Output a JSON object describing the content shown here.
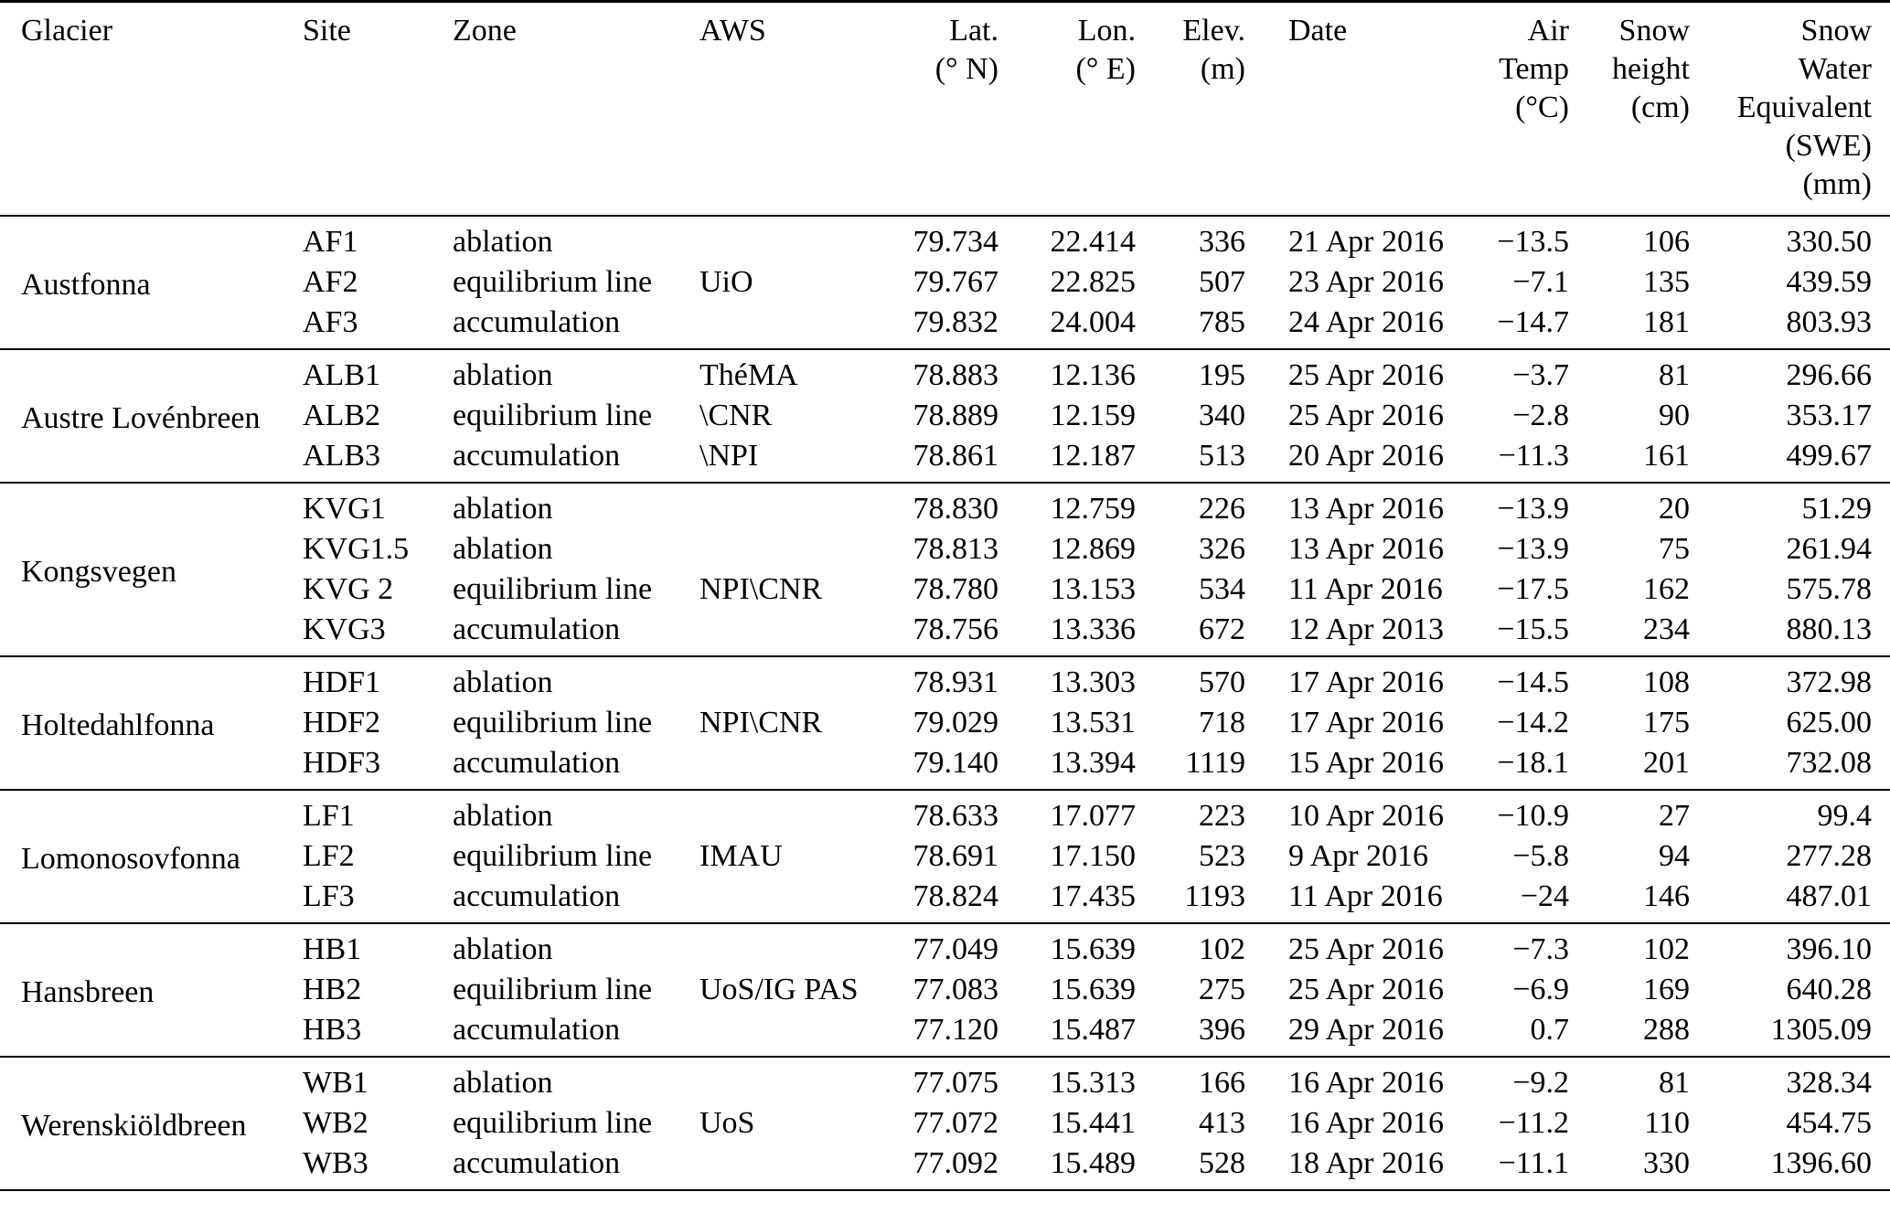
{
  "table": {
    "columns": [
      {
        "id": "glacier",
        "lines": [
          "Glacier"
        ]
      },
      {
        "id": "site",
        "lines": [
          "Site"
        ]
      },
      {
        "id": "zone",
        "lines": [
          "Zone"
        ]
      },
      {
        "id": "aws",
        "lines": [
          "AWS"
        ]
      },
      {
        "id": "lat",
        "lines": [
          "Lat.",
          "(° N)"
        ]
      },
      {
        "id": "lon",
        "lines": [
          "Lon.",
          "(° E)"
        ]
      },
      {
        "id": "elev",
        "lines": [
          "Elev.",
          "(m)"
        ]
      },
      {
        "id": "date",
        "lines": [
          "Date"
        ]
      },
      {
        "id": "temp",
        "lines": [
          "Air",
          "Temp",
          "(°C)"
        ]
      },
      {
        "id": "snow",
        "lines": [
          "Snow",
          "height",
          "(cm)"
        ]
      },
      {
        "id": "swe",
        "lines": [
          "Snow",
          "Water",
          "Equivalent",
          "(SWE)",
          "(mm)"
        ]
      }
    ],
    "groups": [
      {
        "glacier": "Austfonna",
        "rows": [
          {
            "site": "AF1",
            "zone": "ablation",
            "aws": "",
            "lat": "79.734",
            "lon": "22.414",
            "elev": "336",
            "date": "21 Apr 2016",
            "temp": "−13.5",
            "snow": "106",
            "swe": "330.50"
          },
          {
            "site": "AF2",
            "zone": "equilibrium line",
            "aws": "UiO",
            "lat": "79.767",
            "lon": "22.825",
            "elev": "507",
            "date": "23 Apr 2016",
            "temp": "−7.1",
            "snow": "135",
            "swe": "439.59"
          },
          {
            "site": "AF3",
            "zone": "accumulation",
            "aws": "",
            "lat": "79.832",
            "lon": "24.004",
            "elev": "785",
            "date": "24 Apr 2016",
            "temp": "−14.7",
            "snow": "181",
            "swe": "803.93"
          }
        ]
      },
      {
        "glacier": "Austre Lovénbreen",
        "rows": [
          {
            "site": "ALB1",
            "zone": "ablation",
            "aws": "ThéMA",
            "lat": "78.883",
            "lon": "12.136",
            "elev": "195",
            "date": "25 Apr 2016",
            "temp": "−3.7",
            "snow": "81",
            "swe": "296.66"
          },
          {
            "site": "ALB2",
            "zone": "equilibrium line",
            "aws": "\\CNR",
            "lat": "78.889",
            "lon": "12.159",
            "elev": "340",
            "date": "25 Apr 2016",
            "temp": "−2.8",
            "snow": "90",
            "swe": "353.17"
          },
          {
            "site": "ALB3",
            "zone": "accumulation",
            "aws": "\\NPI",
            "lat": "78.861",
            "lon": "12.187",
            "elev": "513",
            "date": "20 Apr 2016",
            "temp": "−11.3",
            "snow": "161",
            "swe": "499.67"
          }
        ]
      },
      {
        "glacier": "Kongsvegen",
        "rows": [
          {
            "site": "KVG1",
            "zone": "ablation",
            "aws": "",
            "lat": "78.830",
            "lon": "12.759",
            "elev": "226",
            "date": "13 Apr 2016",
            "temp": "−13.9",
            "snow": "20",
            "swe": "51.29"
          },
          {
            "site": "KVG1.5",
            "zone": "ablation",
            "aws": "",
            "lat": "78.813",
            "lon": "12.869",
            "elev": "326",
            "date": "13 Apr 2016",
            "temp": "−13.9",
            "snow": "75",
            "swe": "261.94"
          },
          {
            "site": "KVG 2",
            "zone": "equilibrium line",
            "aws": "NPI\\CNR",
            "lat": "78.780",
            "lon": "13.153",
            "elev": "534",
            "date": "11 Apr 2016",
            "temp": "−17.5",
            "snow": "162",
            "swe": "575.78"
          },
          {
            "site": "KVG3",
            "zone": "accumulation",
            "aws": "",
            "lat": "78.756",
            "lon": "13.336",
            "elev": "672",
            "date": "12 Apr 2013",
            "temp": "−15.5",
            "snow": "234",
            "swe": "880.13"
          }
        ]
      },
      {
        "glacier": "Holtedahlfonna",
        "rows": [
          {
            "site": "HDF1",
            "zone": "ablation",
            "aws": "",
            "lat": "78.931",
            "lon": "13.303",
            "elev": "570",
            "date": "17 Apr 2016",
            "temp": "−14.5",
            "snow": "108",
            "swe": "372.98"
          },
          {
            "site": "HDF2",
            "zone": "equilibrium line",
            "aws": "NPI\\CNR",
            "lat": "79.029",
            "lon": "13.531",
            "elev": "718",
            "date": "17 Apr 2016",
            "temp": "−14.2",
            "snow": "175",
            "swe": "625.00"
          },
          {
            "site": "HDF3",
            "zone": "accumulation",
            "aws": "",
            "lat": "79.140",
            "lon": "13.394",
            "elev": "1119",
            "date": "15 Apr 2016",
            "temp": "−18.1",
            "snow": "201",
            "swe": "732.08"
          }
        ]
      },
      {
        "glacier": "Lomonosovfonna",
        "rows": [
          {
            "site": "LF1",
            "zone": "ablation",
            "aws": "",
            "lat": "78.633",
            "lon": "17.077",
            "elev": "223",
            "date": "10 Apr 2016",
            "temp": "−10.9",
            "snow": "27",
            "swe": "99.4"
          },
          {
            "site": "LF2",
            "zone": "equilibrium line",
            "aws": "IMAU",
            "lat": "78.691",
            "lon": "17.150",
            "elev": "523",
            "date": "9 Apr 2016",
            "temp": "−5.8",
            "snow": "94",
            "swe": "277.28"
          },
          {
            "site": "LF3",
            "zone": "accumulation",
            "aws": "",
            "lat": "78.824",
            "lon": "17.435",
            "elev": "1193",
            "date": "11 Apr 2016",
            "temp": "−24",
            "snow": "146",
            "swe": "487.01"
          }
        ]
      },
      {
        "glacier": "Hansbreen",
        "rows": [
          {
            "site": "HB1",
            "zone": "ablation",
            "aws": "",
            "lat": "77.049",
            "lon": "15.639",
            "elev": "102",
            "date": "25 Apr 2016",
            "temp": "−7.3",
            "snow": "102",
            "swe": "396.10"
          },
          {
            "site": "HB2",
            "zone": "equilibrium line",
            "aws": "UoS/IG PAS",
            "lat": "77.083",
            "lon": "15.639",
            "elev": "275",
            "date": "25 Apr 2016",
            "temp": "−6.9",
            "snow": "169",
            "swe": "640.28"
          },
          {
            "site": "HB3",
            "zone": "accumulation",
            "aws": "",
            "lat": "77.120",
            "lon": "15.487",
            "elev": "396",
            "date": "29 Apr 2016",
            "temp": "0.7",
            "snow": "288",
            "swe": "1305.09"
          }
        ]
      },
      {
        "glacier": "Werenskiöldbreen",
        "rows": [
          {
            "site": "WB1",
            "zone": "ablation",
            "aws": "",
            "lat": "77.075",
            "lon": "15.313",
            "elev": "166",
            "date": "16 Apr 2016",
            "temp": "−9.2",
            "snow": "81",
            "swe": "328.34"
          },
          {
            "site": "WB2",
            "zone": "equilibrium line",
            "aws": "UoS",
            "lat": "77.072",
            "lon": "15.441",
            "elev": "413",
            "date": "16 Apr 2016",
            "temp": "−11.2",
            "snow": "110",
            "swe": "454.75"
          },
          {
            "site": "WB3",
            "zone": "accumulation",
            "aws": "",
            "lat": "77.092",
            "lon": "15.489",
            "elev": "528",
            "date": "18 Apr 2016",
            "temp": "−11.1",
            "snow": "330",
            "swe": "1396.60"
          }
        ]
      }
    ]
  }
}
